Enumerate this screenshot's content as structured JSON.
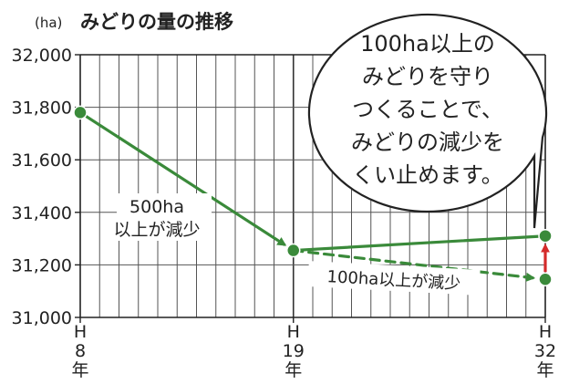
{
  "chart_data": {
    "type": "line",
    "unit": "(ha)",
    "title": "みどりの量の推移",
    "y_ticks": [
      "31,000",
      "31,200",
      "31,400",
      "31,600",
      "31,800",
      "32,000"
    ],
    "ylim": [
      31000,
      32000
    ],
    "x_ticks": [
      {
        "x": 8,
        "lines": [
          "H",
          "8",
          "年"
        ]
      },
      {
        "x": 19,
        "lines": [
          "H",
          "19",
          "年"
        ]
      },
      {
        "x": 32,
        "lines": [
          "H",
          "32",
          "年"
        ]
      }
    ],
    "xlim": [
      8,
      32
    ],
    "grid": true,
    "series": [
      {
        "values": [
          [
            8,
            31780
          ],
          [
            19,
            31255
          ]
        ],
        "style": "solid",
        "color": "#3a8a3a"
      },
      {
        "values": [
          [
            19,
            31255
          ],
          [
            32,
            31310
          ]
        ],
        "style": "solid",
        "color": "#3a8a3a"
      },
      {
        "values": [
          [
            19,
            31255
          ],
          [
            32,
            31145
          ]
        ],
        "style": "dashed",
        "color": "#3a8a3a"
      }
    ],
    "annotations": {
      "decline_label": [
        "500ha",
        "以上が減少"
      ],
      "dashed_label": "100ha以上が減少",
      "callout": [
        "100ha以上の",
        "みどりを守り",
        "つくることで、",
        "みどりの減少を",
        "くい止めます。"
      ]
    },
    "accent_color": "#d42a2a"
  }
}
